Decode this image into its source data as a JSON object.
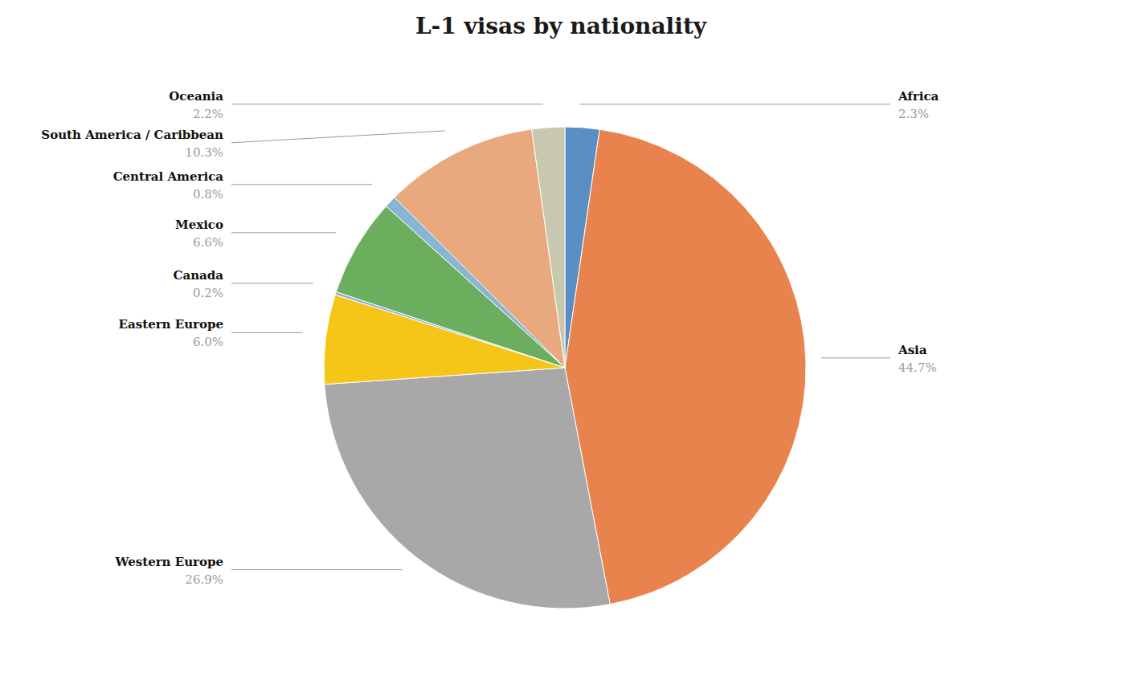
{
  "chart_data": {
    "type": "pie",
    "title": "L-1 visas by nationality",
    "categories": [
      "Africa",
      "Asia",
      "Western Europe",
      "Eastern Europe",
      "Canada",
      "Mexico",
      "Central America",
      "South America / Caribbean",
      "Oceania"
    ],
    "values": [
      2.3,
      44.7,
      26.9,
      6.0,
      0.2,
      6.6,
      0.8,
      10.3,
      2.2
    ],
    "value_labels": [
      "2.3%",
      "44.7%",
      "26.9%",
      "6.0%",
      "0.2%",
      "6.6%",
      "0.8%",
      "10.3%",
      "2.2%"
    ],
    "colors": [
      "#5B8EC5",
      "#E8834E",
      "#A8A8A8",
      "#F5C518",
      "#8BAFD4",
      "#6BAF5E",
      "#8AB4D4",
      "#E8A97E",
      "#C8C8B0"
    ],
    "data_labels": true
  }
}
